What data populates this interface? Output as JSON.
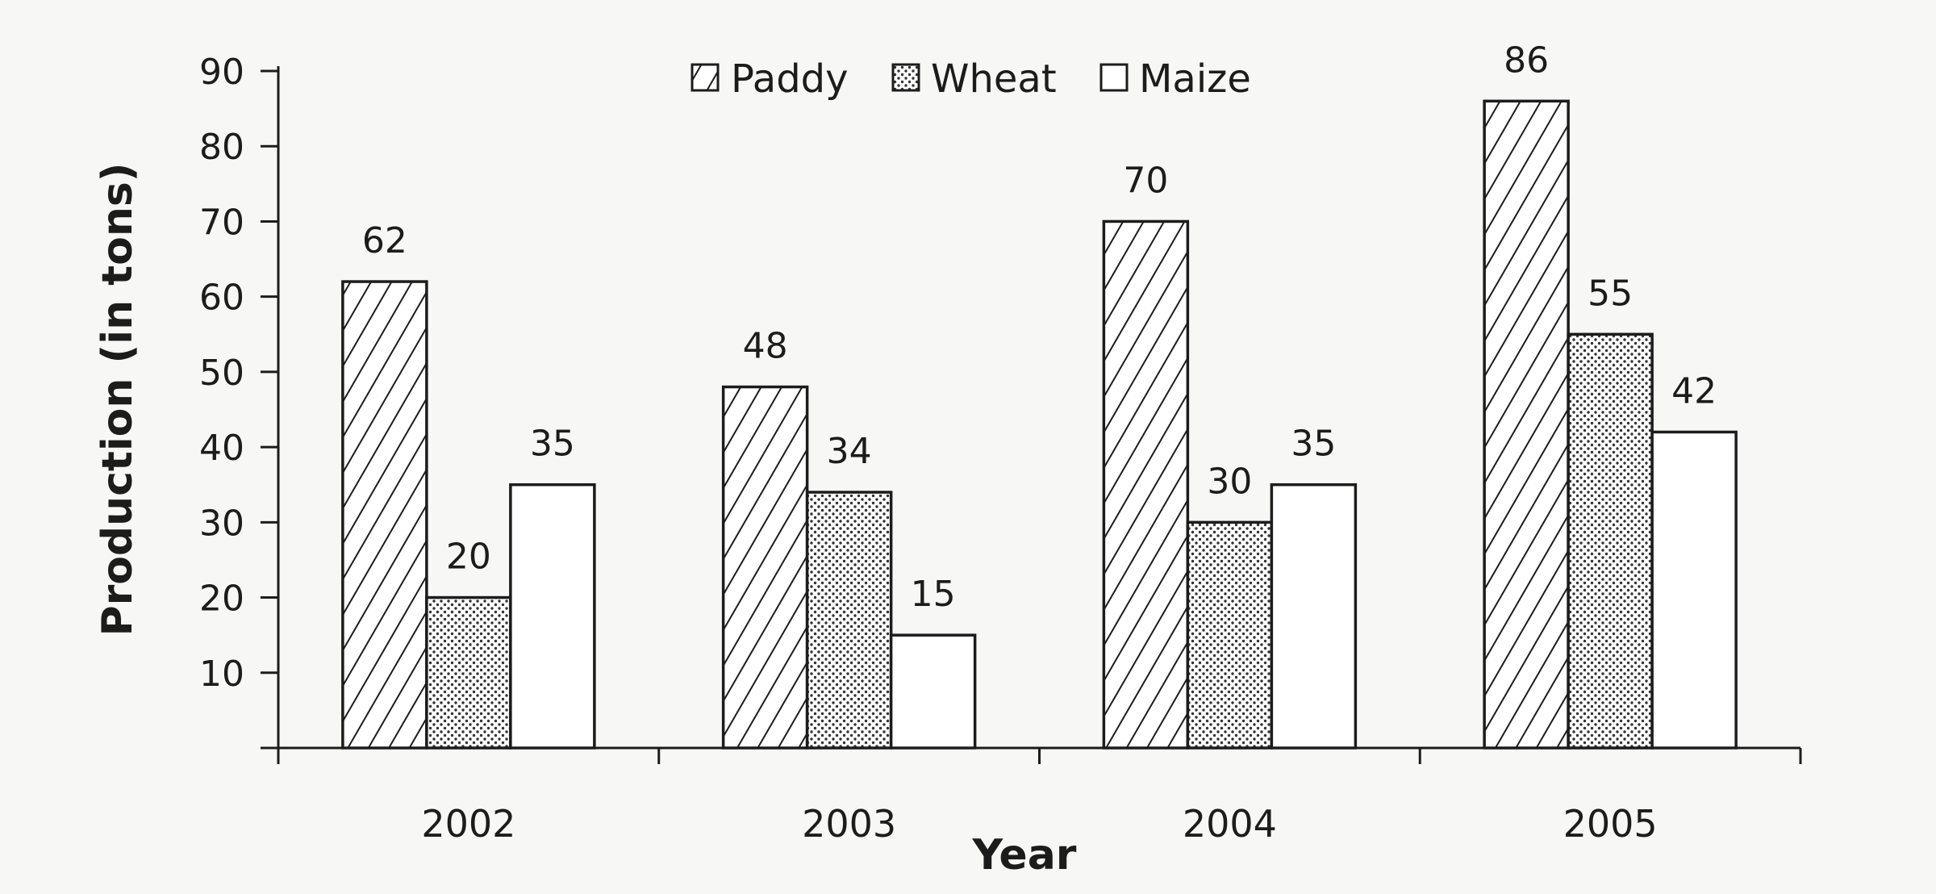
{
  "chart_data": {
    "type": "bar",
    "categories": [
      "2002",
      "2003",
      "2004",
      "2005"
    ],
    "series": [
      {
        "name": "Paddy",
        "values": [
          62,
          48,
          70,
          86
        ],
        "pattern": "diagonal-hatch"
      },
      {
        "name": "Wheat",
        "values": [
          20,
          34,
          30,
          55
        ],
        "pattern": "dotted"
      },
      {
        "name": "Maize",
        "values": [
          35,
          15,
          35,
          42
        ],
        "pattern": "plain-white"
      }
    ],
    "xlabel": "Year",
    "ylabel": "Production (in tons)",
    "ylim": [
      0,
      90
    ],
    "yticks": [
      10,
      20,
      30,
      40,
      50,
      60,
      70,
      80,
      90
    ],
    "grid": false,
    "data_labels": true,
    "legend_position": "top-center",
    "colors": {
      "stroke": "#1c1c1c",
      "background": "#f7f7f5",
      "bar_fill": "#ffffff"
    }
  }
}
